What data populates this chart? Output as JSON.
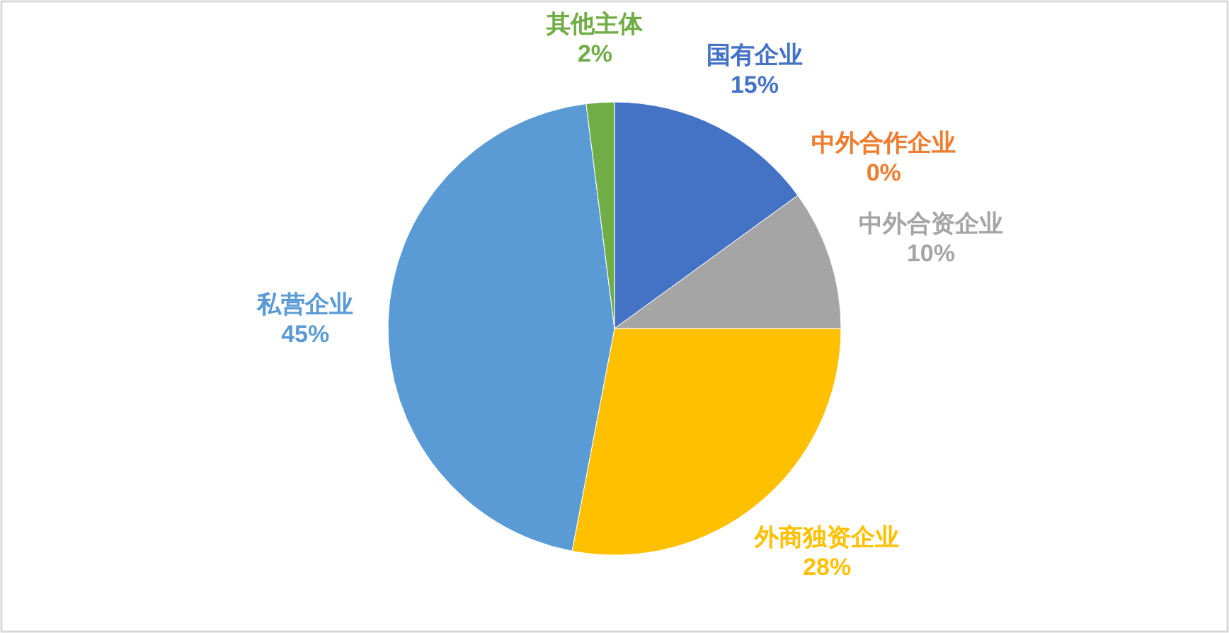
{
  "chart_data": {
    "type": "pie",
    "categories": [
      "国有企业",
      "中外合作企业",
      "中外合资企业",
      "外商独资企业",
      "私营企业",
      "其他主体"
    ],
    "values": [
      15,
      0,
      10,
      28,
      45,
      2
    ],
    "value_labels": [
      "15%",
      "0%",
      "10%",
      "28%",
      "45%",
      "2%"
    ],
    "colors": [
      "#4472c4",
      "#ed7d31",
      "#a5a5a5",
      "#ffc000",
      "#5b9bd5",
      "#70ad47"
    ]
  }
}
